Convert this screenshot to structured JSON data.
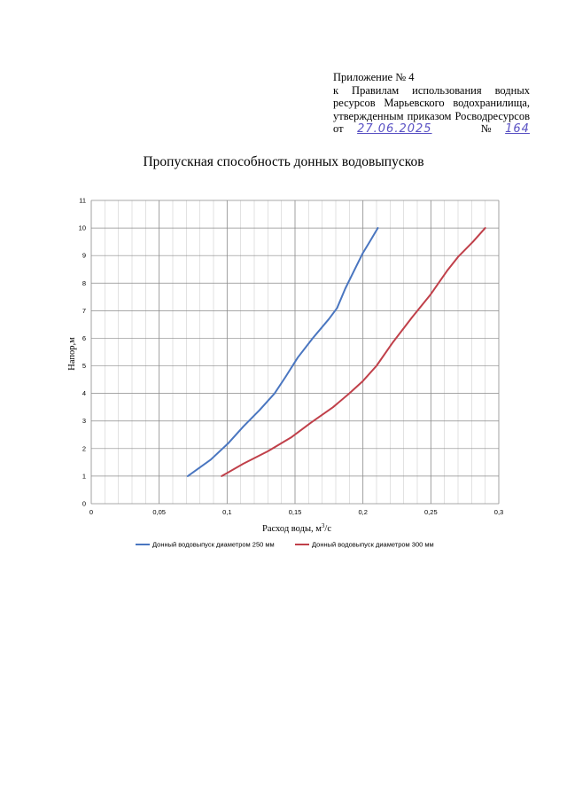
{
  "appendix": {
    "line1": "Приложение № 4",
    "line2": "к Правилам использования водных",
    "line3": "ресурсов Марьевского водохранилища,",
    "line4": "утвержденным приказом Росводресурсов",
    "ot_label": "от",
    "date_handwritten": "27.06.2025",
    "number_label": "№",
    "number_handwritten": "164"
  },
  "chart_data": {
    "type": "line",
    "title": "Пропускная способность донных водовыпусков",
    "xlabel": "Расход воды, м³/с",
    "ylabel": "Напор,м",
    "xlim": [
      0,
      0.3
    ],
    "ylim": [
      0,
      11
    ],
    "x_ticks": [
      "0",
      "0,05",
      "0,1",
      "0,15",
      "0,2",
      "0,25",
      "0,3"
    ],
    "y_ticks": [
      "0",
      "1",
      "2",
      "3",
      "4",
      "5",
      "6",
      "7",
      "8",
      "9",
      "10",
      "11"
    ],
    "grid": true,
    "legend_position": "bottom",
    "series": [
      {
        "name": "Донный водовыпуск диаметром 250 мм",
        "color": "#4a76c0",
        "x": [
          0.071,
          0.088,
          0.101,
          0.112,
          0.124,
          0.135,
          0.143,
          0.152,
          0.163,
          0.175,
          0.181,
          0.187,
          0.195,
          0.2,
          0.205,
          0.211
        ],
        "y": [
          1,
          1.6,
          2.2,
          2.8,
          3.4,
          4.0,
          4.6,
          5.3,
          6.0,
          6.7,
          7.1,
          7.8,
          8.6,
          9.1,
          9.5,
          10
        ]
      },
      {
        "name": "Донный водовыпуск диаметром 300 мм",
        "color": "#c0404a",
        "x": [
          0.096,
          0.112,
          0.13,
          0.147,
          0.162,
          0.178,
          0.19,
          0.2,
          0.21,
          0.222,
          0.236,
          0.25,
          0.262,
          0.27,
          0.281,
          0.29
        ],
        "y": [
          1,
          1.45,
          1.9,
          2.4,
          2.95,
          3.5,
          4.0,
          4.45,
          5.0,
          5.85,
          6.75,
          7.6,
          8.45,
          8.95,
          9.5,
          10
        ]
      }
    ]
  }
}
